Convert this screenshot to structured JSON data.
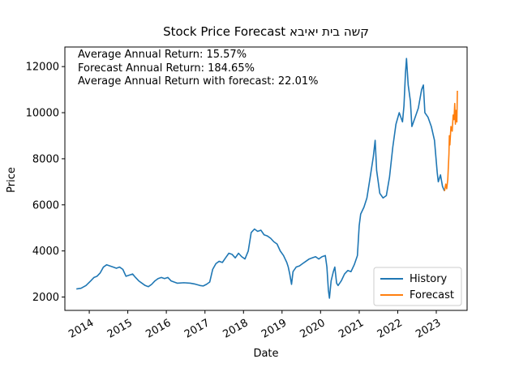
{
  "chart_data": {
    "type": "line",
    "title": "קשה בית יאיבא Stock Price Forecast",
    "xlabel": "Date",
    "ylabel": "Price",
    "xlim": [
      "2013-05-15",
      "2023-10-20"
    ],
    "ylim": [
      1420,
      12850
    ],
    "x_ticks": [
      "2014",
      "2015",
      "2016",
      "2017",
      "2018",
      "2019",
      "2020",
      "2021",
      "2022",
      "2023"
    ],
    "y_ticks": [
      "2000",
      "4000",
      "6000",
      "8000",
      "10000",
      "12000"
    ],
    "annotations": [
      "Average Annual Return: 15.57%",
      "Forecast Annual Return: 184.65%",
      "Average Annual Return with forecast: 22.01%"
    ],
    "legend": {
      "placement": "lower-right",
      "entries": [
        "History",
        "Forecast"
      ]
    },
    "grid": false,
    "series": [
      {
        "name": "History",
        "color": "#1f77b4",
        "points": [
          [
            "2013-09-01",
            2350
          ],
          [
            "2013-10-15",
            2380
          ],
          [
            "2013-12-01",
            2500
          ],
          [
            "2014-01-15",
            2700
          ],
          [
            "2014-02-15",
            2850
          ],
          [
            "2014-03-15",
            2900
          ],
          [
            "2014-04-15",
            3050
          ],
          [
            "2014-05-15",
            3300
          ],
          [
            "2014-06-15",
            3400
          ],
          [
            "2014-07-15",
            3350
          ],
          [
            "2014-08-15",
            3300
          ],
          [
            "2014-09-15",
            3250
          ],
          [
            "2014-10-15",
            3300
          ],
          [
            "2014-11-15",
            3200
          ],
          [
            "2014-12-15",
            2900
          ],
          [
            "2015-01-15",
            2950
          ],
          [
            "2015-02-15",
            3000
          ],
          [
            "2015-03-15",
            2850
          ],
          [
            "2015-04-15",
            2700
          ],
          [
            "2015-05-15",
            2600
          ],
          [
            "2015-06-15",
            2500
          ],
          [
            "2015-07-15",
            2450
          ],
          [
            "2015-08-15",
            2550
          ],
          [
            "2015-09-15",
            2700
          ],
          [
            "2015-10-15",
            2800
          ],
          [
            "2015-11-15",
            2850
          ],
          [
            "2015-12-15",
            2800
          ],
          [
            "2016-01-15",
            2850
          ],
          [
            "2016-02-15",
            2700
          ],
          [
            "2016-03-15",
            2650
          ],
          [
            "2016-04-15",
            2600
          ],
          [
            "2016-06-15",
            2620
          ],
          [
            "2016-08-15",
            2600
          ],
          [
            "2016-10-01",
            2560
          ],
          [
            "2016-11-15",
            2500
          ],
          [
            "2016-12-15",
            2480
          ],
          [
            "2017-01-15",
            2550
          ],
          [
            "2017-02-15",
            2650
          ],
          [
            "2017-03-15",
            3200
          ],
          [
            "2017-04-15",
            3450
          ],
          [
            "2017-05-15",
            3550
          ],
          [
            "2017-06-15",
            3500
          ],
          [
            "2017-07-15",
            3700
          ],
          [
            "2017-08-15",
            3900
          ],
          [
            "2017-09-15",
            3850
          ],
          [
            "2017-10-15",
            3700
          ],
          [
            "2017-11-15",
            3900
          ],
          [
            "2017-12-15",
            3750
          ],
          [
            "2018-01-15",
            3650
          ],
          [
            "2018-02-15",
            4000
          ],
          [
            "2018-03-01",
            4400
          ],
          [
            "2018-03-15",
            4800
          ],
          [
            "2018-04-15",
            4950
          ],
          [
            "2018-05-15",
            4850
          ],
          [
            "2018-06-15",
            4900
          ],
          [
            "2018-07-15",
            4700
          ],
          [
            "2018-08-15",
            4650
          ],
          [
            "2018-09-15",
            4550
          ],
          [
            "2018-10-15",
            4400
          ],
          [
            "2018-11-15",
            4300
          ],
          [
            "2018-12-15",
            4000
          ],
          [
            "2019-01-15",
            3800
          ],
          [
            "2019-02-15",
            3500
          ],
          [
            "2019-03-01",
            3300
          ],
          [
            "2019-03-15",
            3000
          ],
          [
            "2019-04-01",
            2550
          ],
          [
            "2019-04-15",
            3100
          ],
          [
            "2019-05-15",
            3300
          ],
          [
            "2019-06-15",
            3350
          ],
          [
            "2019-07-15",
            3450
          ],
          [
            "2019-08-15",
            3550
          ],
          [
            "2019-09-15",
            3650
          ],
          [
            "2019-10-15",
            3700
          ],
          [
            "2019-11-15",
            3750
          ],
          [
            "2019-12-15",
            3650
          ],
          [
            "2020-01-15",
            3750
          ],
          [
            "2020-02-15",
            3800
          ],
          [
            "2020-03-01",
            3300
          ],
          [
            "2020-03-15",
            2300
          ],
          [
            "2020-03-25",
            1950
          ],
          [
            "2020-04-10",
            2700
          ],
          [
            "2020-05-01",
            3100
          ],
          [
            "2020-05-15",
            3300
          ],
          [
            "2020-06-01",
            2600
          ],
          [
            "2020-06-15",
            2500
          ],
          [
            "2020-07-15",
            2700
          ],
          [
            "2020-08-15",
            3000
          ],
          [
            "2020-09-15",
            3150
          ],
          [
            "2020-10-15",
            3100
          ],
          [
            "2020-11-15",
            3400
          ],
          [
            "2020-12-15",
            3800
          ],
          [
            "2021-01-01",
            5100
          ],
          [
            "2021-01-15",
            5600
          ],
          [
            "2021-02-15",
            5900
          ],
          [
            "2021-03-15",
            6300
          ],
          [
            "2021-04-15",
            7200
          ],
          [
            "2021-05-15",
            8100
          ],
          [
            "2021-06-01",
            8800
          ],
          [
            "2021-06-15",
            7500
          ],
          [
            "2021-07-15",
            6500
          ],
          [
            "2021-08-15",
            6300
          ],
          [
            "2021-09-15",
            6400
          ],
          [
            "2021-10-15",
            7200
          ],
          [
            "2021-11-15",
            8500
          ],
          [
            "2021-12-15",
            9500
          ],
          [
            "2022-01-15",
            10000
          ],
          [
            "2022-02-15",
            9600
          ],
          [
            "2022-03-01",
            10300
          ],
          [
            "2022-03-15",
            11700
          ],
          [
            "2022-03-25",
            12350
          ],
          [
            "2022-04-10",
            11200
          ],
          [
            "2022-05-01",
            10500
          ],
          [
            "2022-05-15",
            9400
          ],
          [
            "2022-06-15",
            9800
          ],
          [
            "2022-07-15",
            10200
          ],
          [
            "2022-08-15",
            11000
          ],
          [
            "2022-09-01",
            11200
          ],
          [
            "2022-09-15",
            10000
          ],
          [
            "2022-10-15",
            9800
          ],
          [
            "2022-11-15",
            9400
          ],
          [
            "2022-12-15",
            8800
          ],
          [
            "2023-01-10",
            7400
          ],
          [
            "2023-01-20",
            7000
          ],
          [
            "2023-02-10",
            7300
          ],
          [
            "2023-03-01",
            6800
          ],
          [
            "2023-03-20",
            6600
          ]
        ]
      },
      {
        "name": "Forecast",
        "color": "#ff7f0e",
        "points": [
          [
            "2023-03-20",
            6600
          ],
          [
            "2023-04-01",
            6900
          ],
          [
            "2023-04-10",
            6700
          ],
          [
            "2023-04-20",
            7100
          ],
          [
            "2023-05-01",
            8200
          ],
          [
            "2023-05-05",
            9000
          ],
          [
            "2023-05-10",
            8600
          ],
          [
            "2023-05-20",
            9400
          ],
          [
            "2023-06-01",
            9200
          ],
          [
            "2023-06-10",
            9900
          ],
          [
            "2023-06-18",
            9700
          ],
          [
            "2023-06-25",
            10400
          ],
          [
            "2023-07-01",
            9500
          ],
          [
            "2023-07-08",
            10100
          ],
          [
            "2023-07-15",
            9600
          ],
          [
            "2023-07-20",
            10950
          ]
        ]
      }
    ]
  }
}
